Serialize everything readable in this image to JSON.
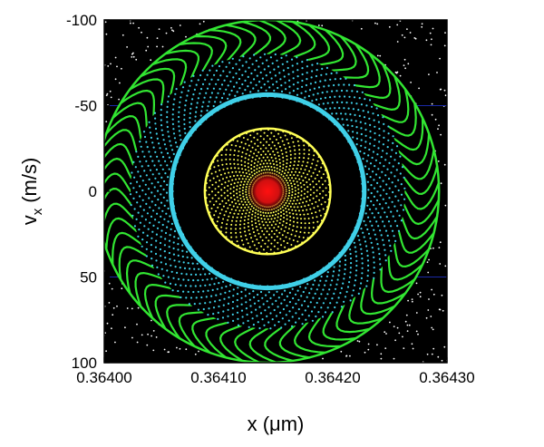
{
  "chart_data": {
    "type": "scatter",
    "title": "",
    "xlabel": "x (μm)",
    "ylabel_main": "v",
    "ylabel_sub": "x",
    "ylabel_unit": "(m/s)",
    "xlim": [
      0.364,
      0.3643
    ],
    "ylim": [
      100,
      -100
    ],
    "y_axis_inverted": true,
    "x_tick_values": [
      0.364,
      0.3641,
      0.3642,
      0.3643
    ],
    "x_tick_labels": [
      "0.36400",
      "0.36410",
      "0.36420",
      "0.36430"
    ],
    "y_tick_values": [
      -100,
      -50,
      0,
      50,
      100
    ],
    "y_tick_labels": [
      "-100",
      "-50",
      "0",
      "50",
      "100"
    ],
    "plot_background": "#000000",
    "gridlines_at_y": [
      -50,
      50
    ],
    "gridline_color": "#1a2aa8",
    "grid": false,
    "legend": false,
    "center": {
      "x": 0.364143,
      "v": 0
    },
    "series": [
      {
        "color": "#ffffff",
        "style": "background-dots"
      },
      {
        "color": "#32e632",
        "style": "outer-ring",
        "inner_radius_x": 0.00012,
        "outer_radius_x": 0.00015
      },
      {
        "color": "#3fd0e8",
        "style": "middle-ring",
        "inner_radius_x": 8.3e-05,
        "outer_radius_x": 0.00012
      },
      {
        "color": "#ffff55",
        "style": "inner-disk",
        "radius_x": 5.5e-05
      },
      {
        "color": "#ff2020",
        "style": "core",
        "radius_x": 6e-06
      }
    ]
  }
}
